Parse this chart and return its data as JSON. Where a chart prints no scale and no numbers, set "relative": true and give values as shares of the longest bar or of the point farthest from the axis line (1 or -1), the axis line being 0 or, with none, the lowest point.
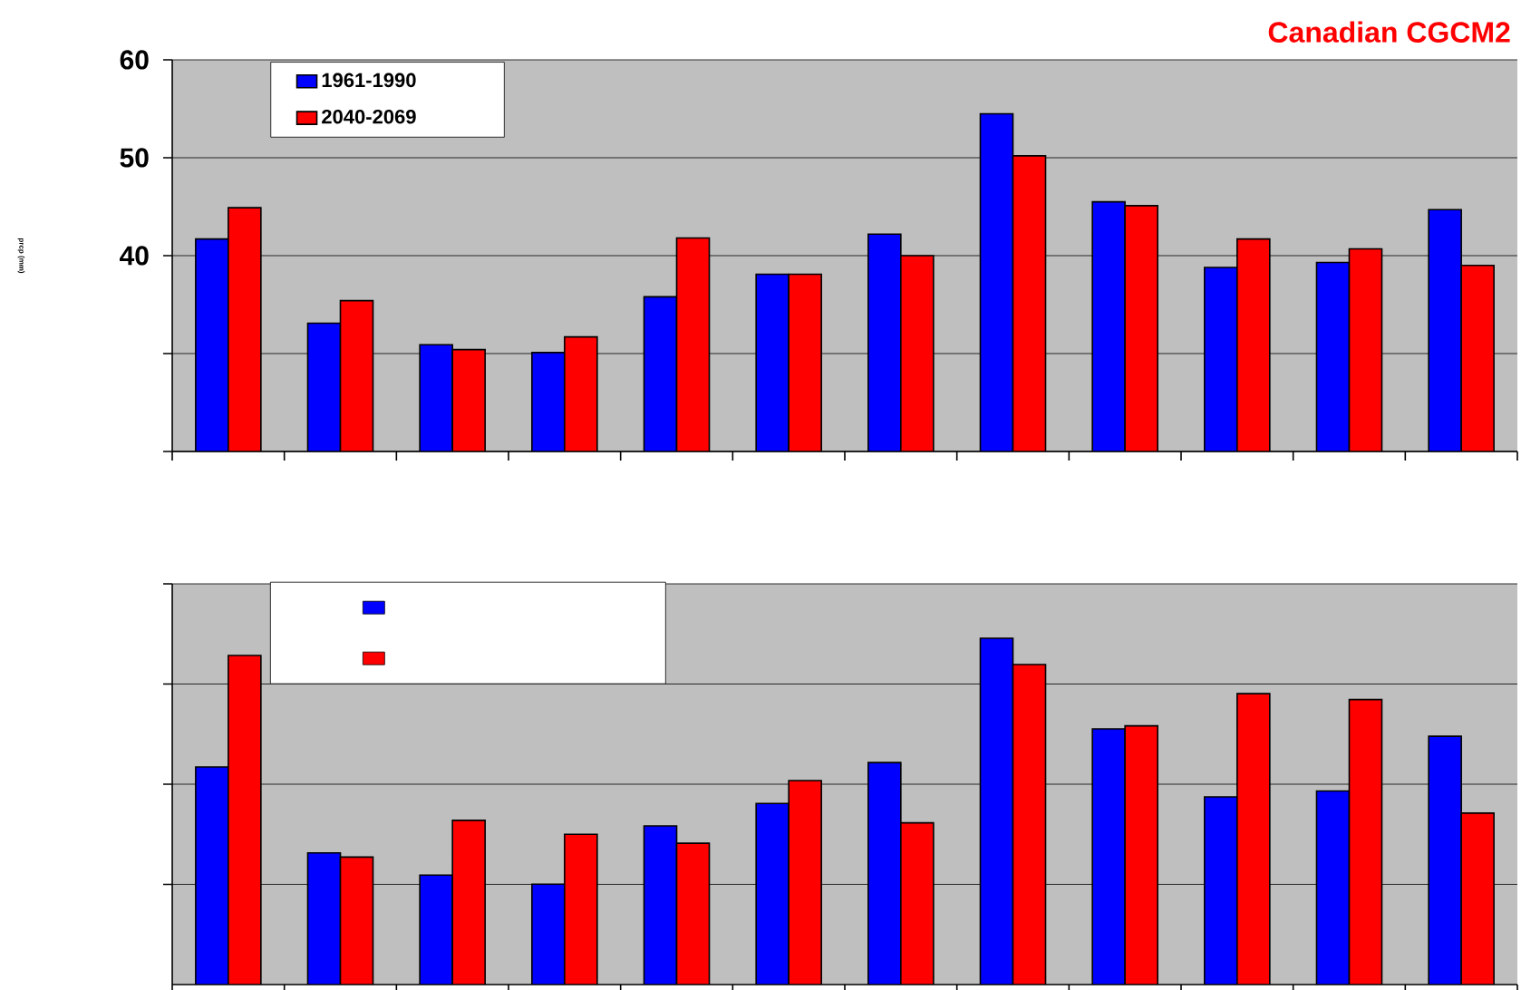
{
  "chart_data": [
    {
      "type": "bar",
      "title": "Canadian CGCM2",
      "ylabel": "prcp (mm)",
      "categories": [
        null,
        null,
        null,
        null,
        null,
        null,
        null,
        null,
        null,
        null,
        null,
        null
      ],
      "series": [
        {
          "name": "1961-1990",
          "color": "#0000ff",
          "values": [
            41.7,
            33.1,
            30.9,
            30.1,
            35.8,
            38.1,
            42.2,
            54.5,
            45.5,
            38.8,
            39.3,
            44.7
          ]
        },
        {
          "name": "2040-2069",
          "color": "#ff0000",
          "values": [
            44.9,
            35.4,
            30.4,
            31.7,
            41.8,
            38.1,
            40.0,
            50.2,
            45.1,
            41.7,
            40.7,
            39.0
          ]
        }
      ],
      "ylim": [
        20,
        60
      ],
      "yticks": [
        {
          "value": 20,
          "label": null
        },
        {
          "value": 30,
          "label": null
        },
        40,
        50,
        60
      ],
      "grid": "y",
      "legend": "top left"
    },
    {
      "type": "bar",
      "relative": true,
      "categories": [
        null,
        null,
        null,
        null,
        null,
        null,
        null,
        null,
        null,
        null,
        null,
        null
      ],
      "series": [
        {
          "color": "#0000ff",
          "values": [
            0.628,
            0.38,
            0.316,
            0.29,
            0.458,
            0.523,
            0.641,
            1,
            0.738,
            0.542,
            0.559,
            0.717
          ]
        },
        {
          "color": "#ff0000",
          "values": [
            0.95,
            0.368,
            0.474,
            0.434,
            0.408,
            0.589,
            0.467,
            0.924,
            0.747,
            0.84,
            0.823,
            0.495
          ]
        }
      ],
      "grid": "y",
      "legend": "top left"
    }
  ]
}
